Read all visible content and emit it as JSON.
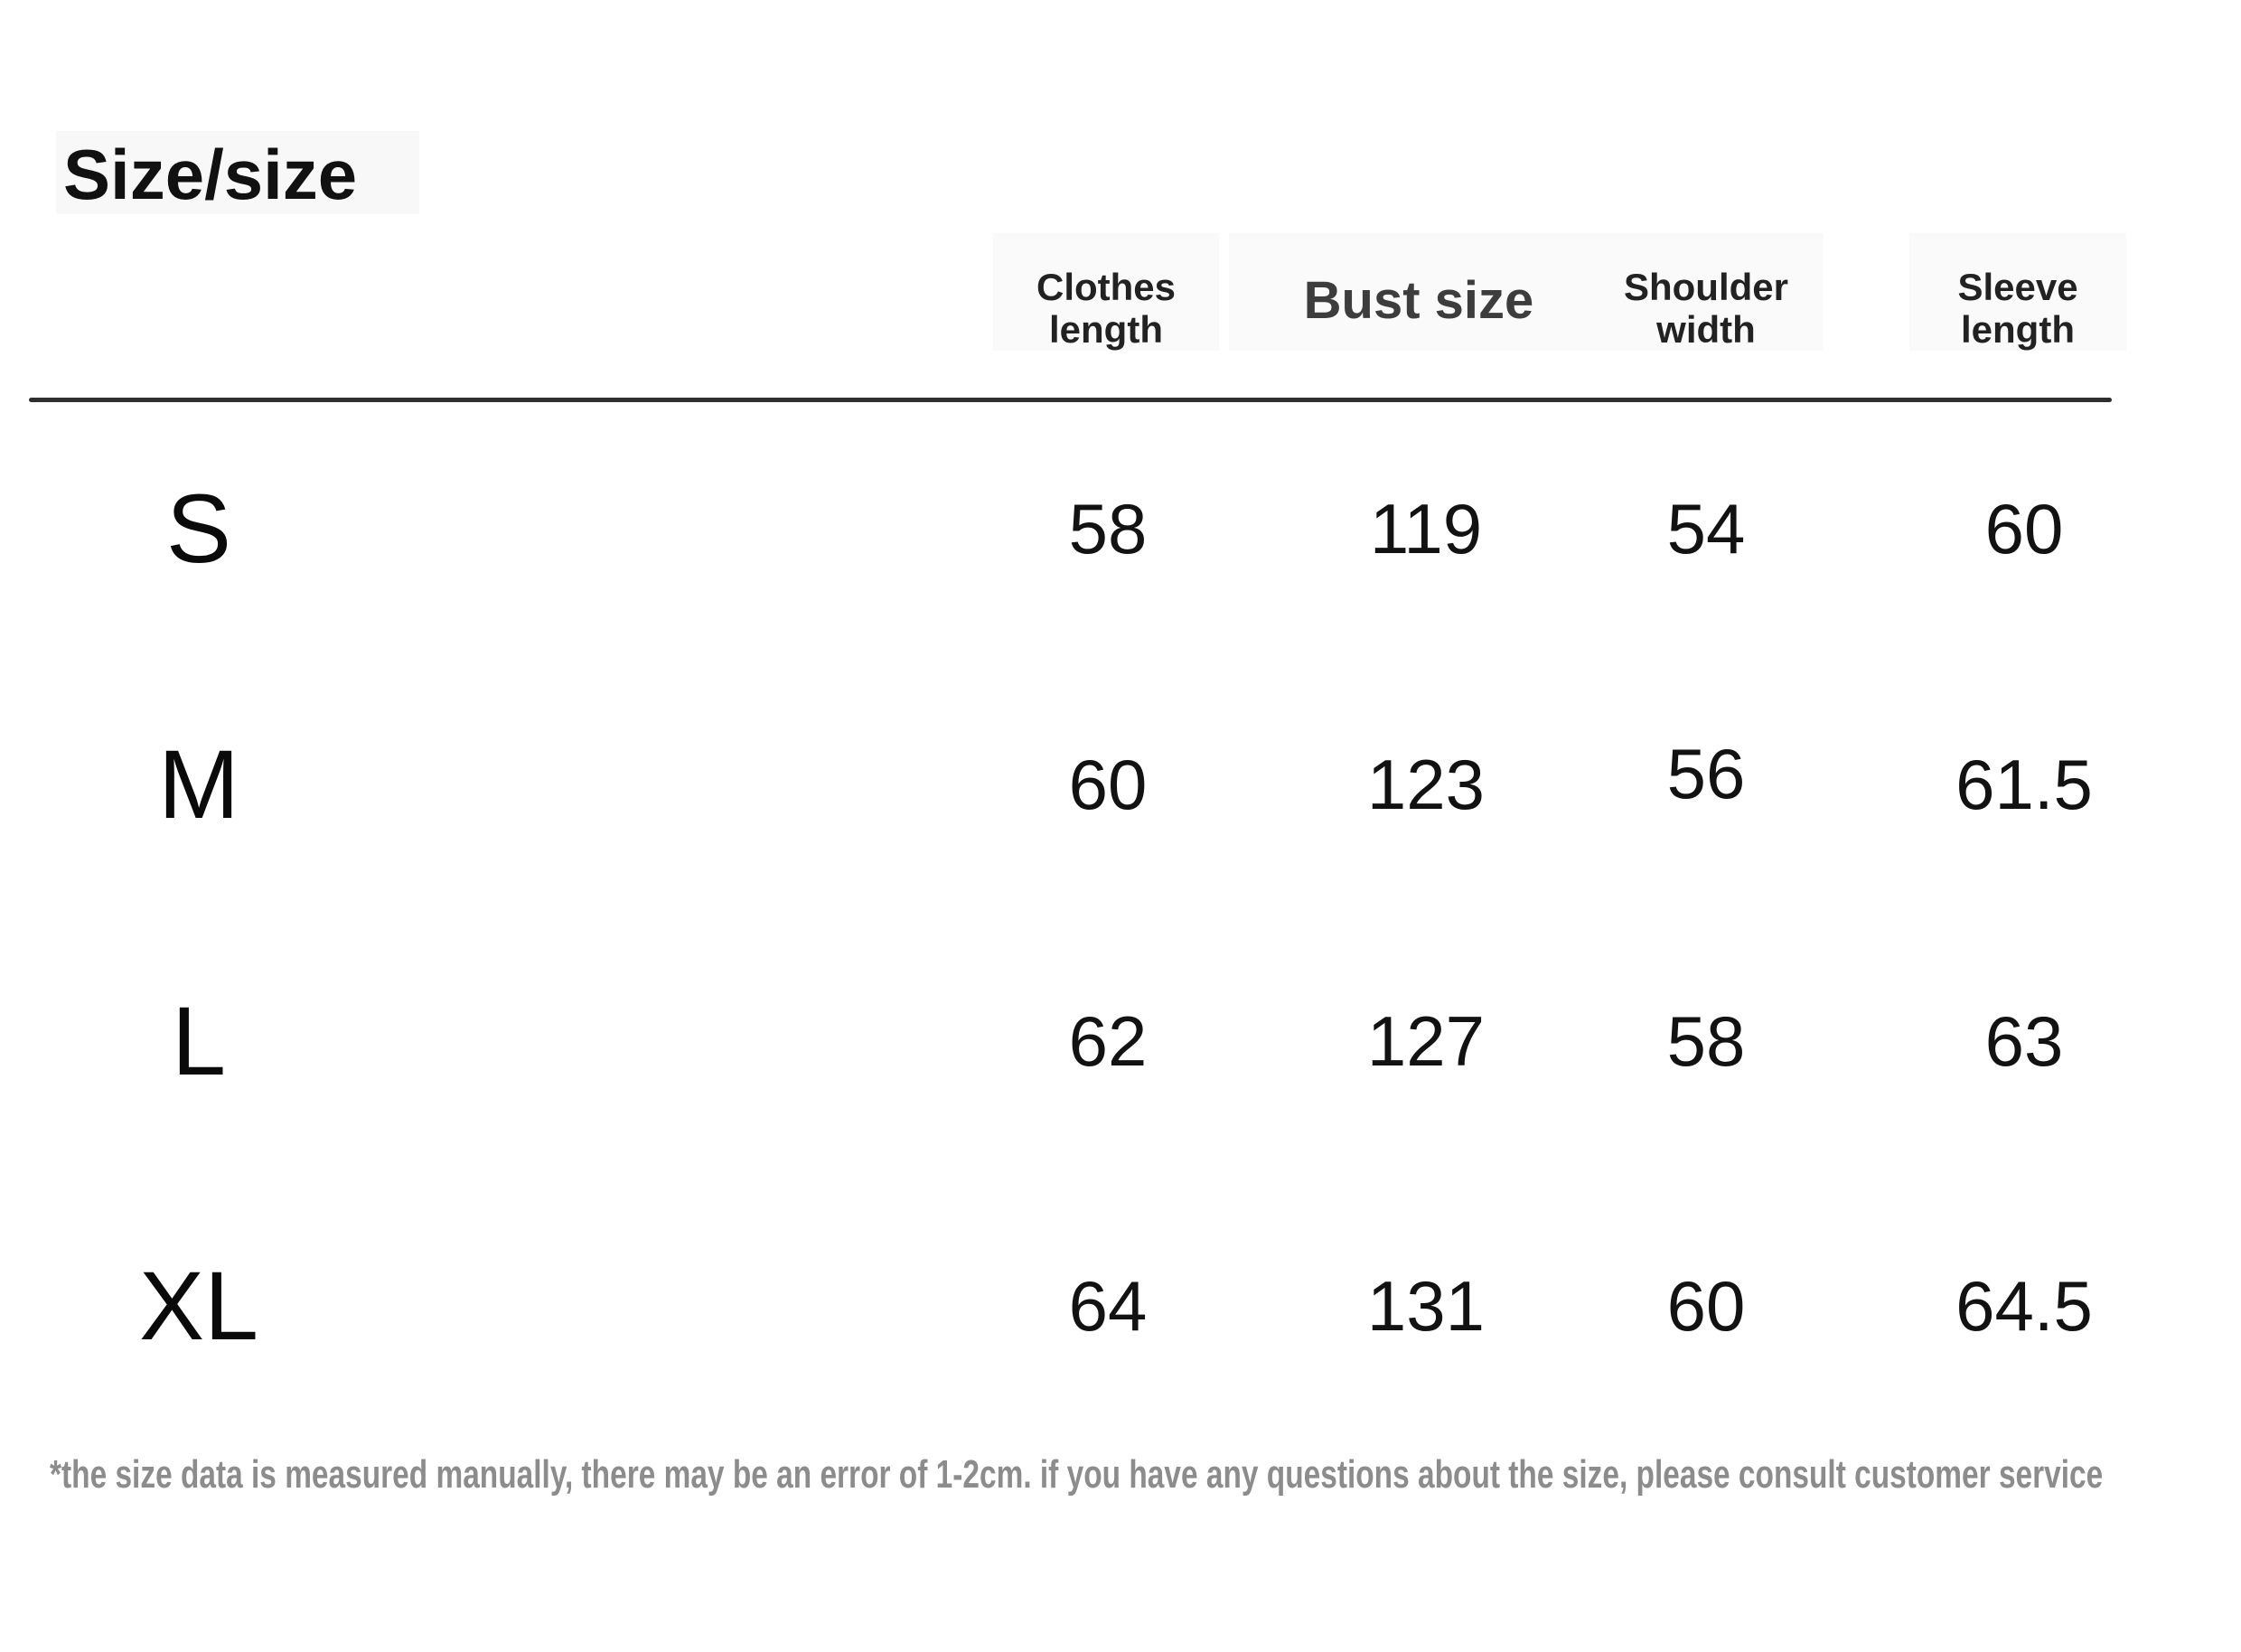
{
  "title": "Size/size",
  "table": {
    "columns": [
      {
        "label": "Clothes length"
      },
      {
        "label": "Bust size"
      },
      {
        "label": "Shoulder width"
      },
      {
        "label": "Sleeve length"
      }
    ],
    "rows": [
      {
        "size": "S",
        "values": [
          "58",
          "119",
          "54",
          "60"
        ]
      },
      {
        "size": "M",
        "values": [
          "60",
          "123",
          "56",
          "61.5"
        ]
      },
      {
        "size": "L",
        "values": [
          "62",
          "127",
          "58",
          "63"
        ]
      },
      {
        "size": "XL",
        "values": [
          "64",
          "131",
          "60",
          "64.5"
        ]
      }
    ]
  },
  "footnote": "*the size data is measured manually, there may be an error of 1-2cm. if you have any questions about the size, please consult customer service",
  "colors": {
    "page_background": "#ffffff",
    "title_text": "#111111",
    "header_text": "#222222",
    "bust_header_text": "#3d3d3d",
    "value_text": "#121212",
    "divider": "#2f2f2f",
    "footnote_text": "#8c8c8c"
  }
}
